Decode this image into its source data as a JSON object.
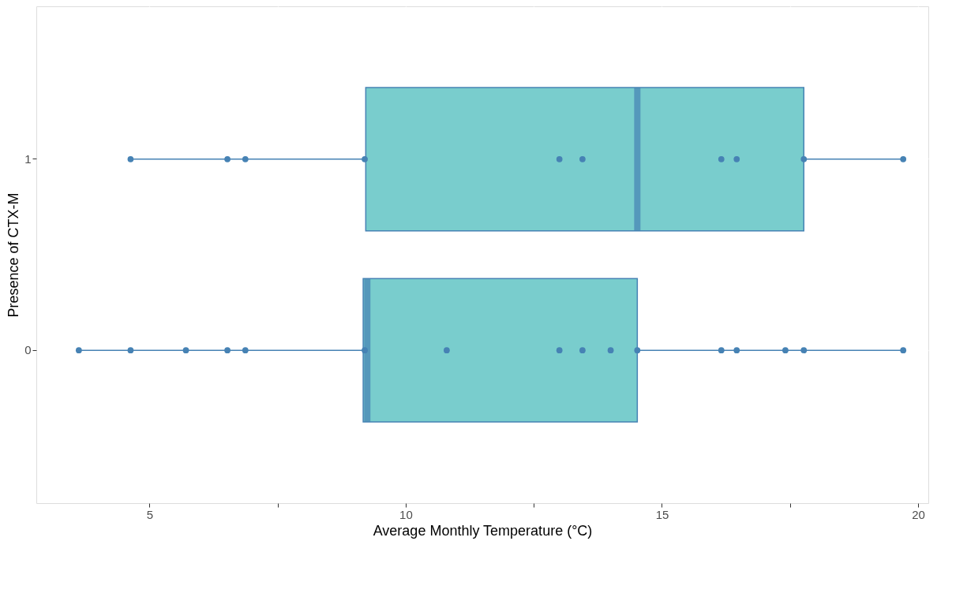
{
  "chart_data": {
    "type": "box",
    "orientation": "horizontal",
    "xlabel": "Average Monthly Temperature (°C)",
    "ylabel": "Presence of CTX-M",
    "categories": [
      "1",
      "0"
    ],
    "series": [
      {
        "type": "box",
        "color": "#79cdcd",
        "boxes": [
          {
            "low": 4.63,
            "q1": 9.22,
            "median": 14.52,
            "q3": 17.77,
            "high": 19.71
          },
          {
            "low": 3.62,
            "q1": 9.17,
            "median": 9.25,
            "q3": 14.52,
            "high": 19.71
          }
        ]
      },
      {
        "type": "scatter",
        "color": "#4682b4",
        "x": [
          "1",
          "1",
          "1",
          "1",
          "1",
          "1",
          "1",
          "1",
          "1",
          "1",
          "0",
          "0",
          "0",
          "0",
          "0",
          "0",
          "0",
          "0",
          "0",
          "0",
          "0",
          "0",
          "0",
          "0",
          "0",
          "0"
        ],
        "values": [
          4.63,
          6.52,
          6.87,
          9.2,
          13.0,
          13.45,
          16.16,
          16.46,
          17.77,
          19.71,
          3.62,
          4.63,
          5.71,
          6.52,
          6.87,
          9.2,
          10.8,
          13.0,
          13.45,
          14.0,
          14.52,
          16.16,
          16.46,
          17.41,
          17.77,
          19.71
        ]
      }
    ],
    "xlim": [
      2.79,
      20.2
    ],
    "xticks": [
      5,
      {
        "value": 7.5,
        "label": null
      },
      10,
      {
        "value": 12.5,
        "label": null
      },
      15,
      {
        "value": 17.5,
        "label": null
      },
      20
    ],
    "grid": true
  }
}
